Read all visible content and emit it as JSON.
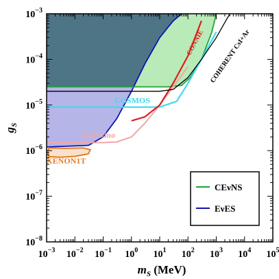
{
  "chart_data": {
    "type": "area",
    "xlabel": "m_S (MeV)",
    "ylabel": "g_S",
    "xscale": "log",
    "yscale": "log",
    "xlim": [
      0.001,
      100000
    ],
    "ylim": [
      1e-08,
      0.001
    ],
    "x_ticks": [
      "10^-3",
      "10^-2",
      "10^-1",
      "10^0",
      "10^1",
      "10^2",
      "10^3",
      "10^4",
      "10^5"
    ],
    "y_ticks": [
      "10^-8",
      "10^-7",
      "10^-6",
      "10^-5",
      "10^-4",
      "10^-3"
    ],
    "colors": {
      "dark_excluded": "#4e7585",
      "cevns": "#21a336",
      "eves": "#1212b0",
      "xenon": "#e67e22",
      "borexino": "#f4a6a6",
      "connie": "#dd1c1c",
      "cosmos": "#3fd9ee",
      "coherent": "#000000",
      "blue_fill": "#b5b5e8",
      "green_fill": "#b8ebb8"
    },
    "shaded_regions": [
      {
        "id": "eves",
        "color": "#1212b0",
        "fill": "#b5b5e8",
        "boundary": [
          [
            0.001,
            1.2e-06
          ],
          [
            0.03,
            1.3e-06
          ],
          [
            0.1,
            2e-06
          ],
          [
            0.3,
            5e-06
          ],
          [
            1,
            2e-05
          ],
          [
            3,
            8e-05
          ],
          [
            10,
            0.0003
          ],
          [
            30,
            0.0007
          ],
          [
            60,
            0.001
          ]
        ]
      },
      {
        "id": "cevns",
        "color": "#21a336",
        "fill": "#b8ebb8",
        "boundary": [
          [
            0.001,
            2.5e-05
          ],
          [
            20,
            2.5e-05
          ],
          [
            60,
            2.7e-05
          ],
          [
            120,
            4e-05
          ],
          [
            300,
            0.0001
          ],
          [
            700,
            0.0004
          ],
          [
            1000,
            0.001
          ]
        ]
      },
      {
        "id": "xenon",
        "color": "#e67e22",
        "outline": [
          [
            0.0012,
            1.15e-06
          ],
          [
            0.005,
            1.12e-06
          ],
          [
            0.02,
            1.15e-06
          ],
          [
            0.035,
            1.05e-06
          ],
          [
            0.03,
            8.5e-07
          ],
          [
            0.01,
            7.5e-07
          ],
          [
            0.003,
            7.2e-07
          ],
          [
            0.0012,
            7.4e-07
          ],
          [
            0.0011,
            9e-07
          ]
        ]
      }
    ],
    "series": [
      {
        "name": "Borexino",
        "color": "#f4a6a6",
        "x": [
          0.001,
          0.1,
          0.3,
          1,
          3,
          10,
          30,
          100
        ],
        "y": [
          1.5e-06,
          1.5e-06,
          1.55e-06,
          2e-06,
          4e-06,
          1e-05,
          2.5e-05,
          7e-05
        ]
      },
      {
        "name": "COSMOS",
        "color": "#3fd9ee",
        "x": [
          0.001,
          10,
          40,
          100,
          300,
          1000
        ],
        "y": [
          9e-06,
          9e-06,
          1.2e-05,
          3e-05,
          0.0001,
          0.0004
        ]
      },
      {
        "name": "CONNIE",
        "color": "#dd1c1c",
        "x": [
          1,
          3,
          10,
          30,
          100,
          300
        ],
        "y": [
          4.5e-06,
          5.5e-06,
          1e-05,
          3e-05,
          0.00012,
          0.0007
        ]
      },
      {
        "name": "COHERENT CsI+Ar",
        "color": "#000000",
        "x": [
          0.001,
          10,
          30,
          100,
          300,
          1000,
          3000
        ],
        "y": [
          2e-05,
          2e-05,
          2.2e-05,
          4e-05,
          0.0001,
          0.0003,
          0.001
        ]
      }
    ],
    "annotations": [
      {
        "text": "CONNIE",
        "x": 120,
        "y": 0.00012,
        "color": "#dd1c1c"
      },
      {
        "text": "COHERENT CsI+Ar",
        "x": 800,
        "y": 3e-05,
        "color": "#000000"
      },
      {
        "text": "COSMOS",
        "x": 0.25,
        "y": 1.1e-05,
        "color": "#3fd9ee"
      },
      {
        "text": "Borexino",
        "x": 0.02,
        "y": 1.9e-06,
        "color": "#f4a6a6"
      },
      {
        "text": "XENON1T",
        "x": 0.001,
        "y": 5.2e-07,
        "color": "#e67e22"
      }
    ],
    "legend": {
      "placement": "lower-right",
      "entries": [
        {
          "label": "CEνNS",
          "color": "#21a336"
        },
        {
          "label": "EνES",
          "color": "#1212b0"
        }
      ]
    }
  }
}
